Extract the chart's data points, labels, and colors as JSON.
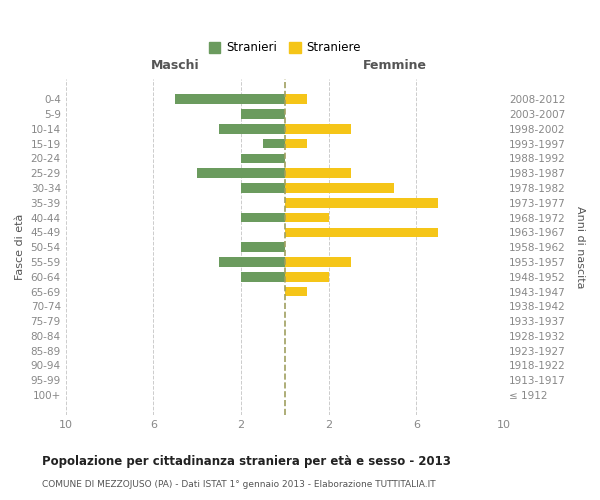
{
  "age_groups": [
    "100+",
    "95-99",
    "90-94",
    "85-89",
    "80-84",
    "75-79",
    "70-74",
    "65-69",
    "60-64",
    "55-59",
    "50-54",
    "45-49",
    "40-44",
    "35-39",
    "30-34",
    "25-29",
    "20-24",
    "15-19",
    "10-14",
    "5-9",
    "0-4"
  ],
  "birth_years": [
    "≤ 1912",
    "1913-1917",
    "1918-1922",
    "1923-1927",
    "1928-1932",
    "1933-1937",
    "1938-1942",
    "1943-1947",
    "1948-1952",
    "1953-1957",
    "1958-1962",
    "1963-1967",
    "1968-1972",
    "1973-1977",
    "1978-1982",
    "1983-1987",
    "1988-1992",
    "1993-1997",
    "1998-2002",
    "2003-2007",
    "2008-2012"
  ],
  "maschi": [
    0,
    0,
    0,
    0,
    0,
    0,
    0,
    0,
    2,
    3,
    2,
    0,
    2,
    0,
    2,
    4,
    2,
    1,
    3,
    2,
    5
  ],
  "femmine": [
    0,
    0,
    0,
    0,
    0,
    0,
    0,
    1,
    2,
    3,
    0,
    7,
    2,
    7,
    5,
    3,
    0,
    1,
    3,
    0,
    1
  ],
  "male_color": "#6b9b5e",
  "female_color": "#f5c518",
  "center_line_color": "#a0a060",
  "grid_color": "#cccccc",
  "background_color": "#ffffff",
  "title": "Popolazione per cittadinanza straniera per età e sesso - 2013",
  "subtitle": "COMUNE DI MEZZOJUSO (PA) - Dati ISTAT 1° gennaio 2013 - Elaborazione TUTTITALIA.IT",
  "legend_stranieri": "Stranieri",
  "legend_straniere": "Straniere",
  "xlabel_left": "Maschi",
  "xlabel_right": "Femmine",
  "ylabel_left": "Fasce di età",
  "ylabel_right": "Anni di nascita",
  "xlim": 10,
  "bar_height": 0.65
}
